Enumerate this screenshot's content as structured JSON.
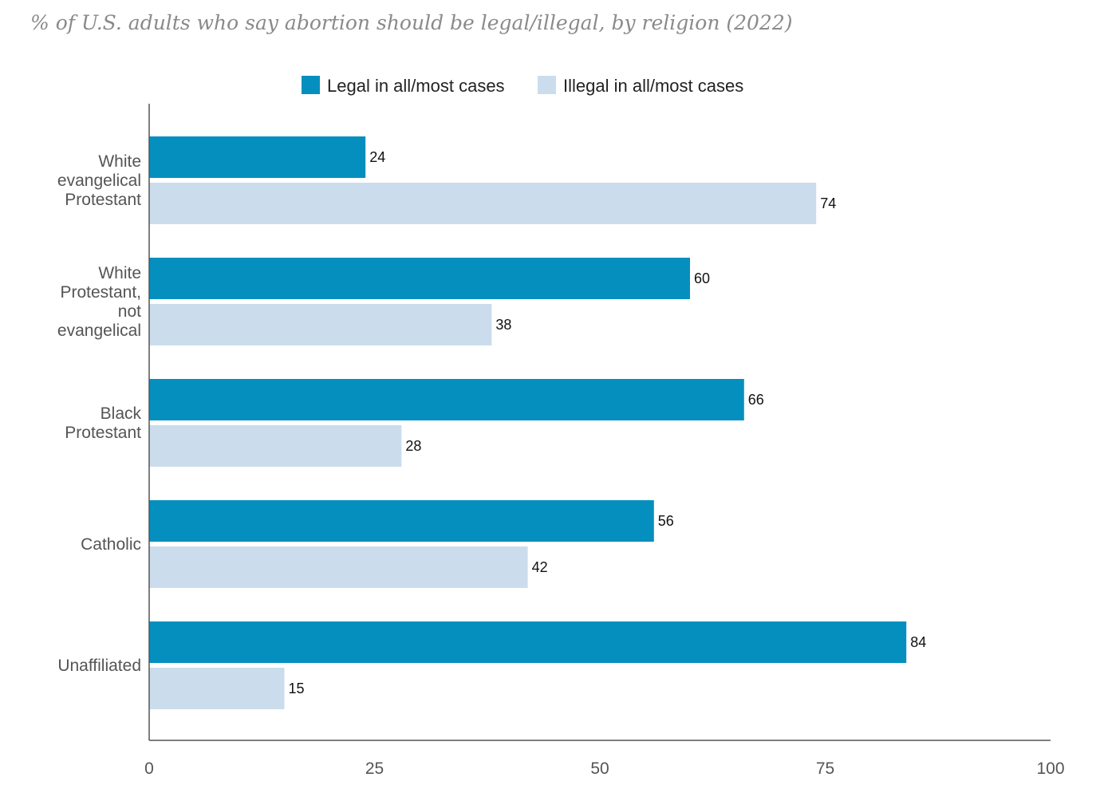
{
  "chart_data": {
    "type": "bar",
    "orientation": "horizontal",
    "title": "% of U.S. adults who say abortion should be legal/illegal, by religion (2022)",
    "categories": [
      "White evangelical Protestant",
      "White Protestant, not evangelical",
      "Black Protestant",
      "Catholic",
      "Unaffiliated"
    ],
    "category_lines": [
      [
        "White",
        "evangelical",
        "Protestant"
      ],
      [
        "White",
        "Protestant,",
        "not",
        "evangelical"
      ],
      [
        "Black",
        "Protestant"
      ],
      [
        "Catholic"
      ],
      [
        "Unaffiliated"
      ]
    ],
    "series": [
      {
        "name": "Legal in all/most cases",
        "values": [
          24,
          60,
          66,
          56,
          84
        ],
        "color": "#058fbf"
      },
      {
        "name": "Illegal in all/most cases",
        "values": [
          74,
          38,
          28,
          42,
          15
        ],
        "color": "#cbdded"
      }
    ],
    "xlim": [
      0,
      100
    ],
    "xticks": [
      "0",
      "25",
      "50",
      "75",
      "100"
    ],
    "grid": false,
    "legend_position": "top"
  }
}
